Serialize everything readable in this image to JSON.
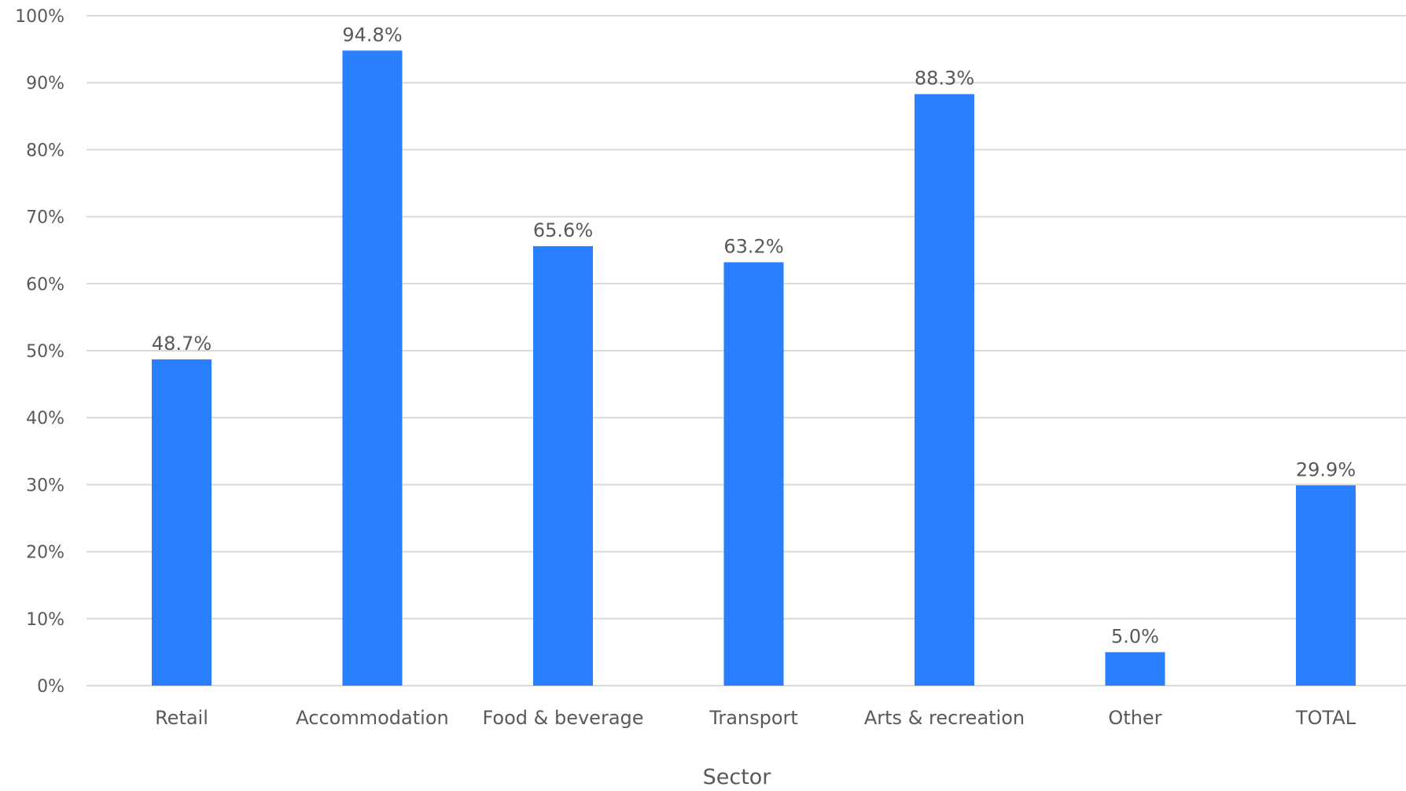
{
  "chart_data": {
    "type": "bar",
    "title": "",
    "xlabel": "Sector",
    "ylabel": "",
    "categories": [
      "Retail",
      "Accommodation",
      "Food & beverage",
      "Transport",
      "Arts & recreation",
      "Other",
      "TOTAL"
    ],
    "values": [
      48.7,
      94.8,
      65.6,
      63.2,
      88.3,
      5.0,
      29.9
    ],
    "data_labels": [
      "48.7%",
      "94.8%",
      "65.6%",
      "63.2%",
      "88.3%",
      "5.0%",
      "29.9%"
    ],
    "y_ticks": [
      0,
      10,
      20,
      30,
      40,
      50,
      60,
      70,
      80,
      90,
      100
    ],
    "y_tick_labels": [
      "0%",
      "10%",
      "20%",
      "30%",
      "40%",
      "50%",
      "60%",
      "70%",
      "80%",
      "90%",
      "100%"
    ],
    "ylim": [
      0,
      100
    ],
    "grid": true,
    "legend": "none",
    "bar_color": "#2a7fff"
  }
}
